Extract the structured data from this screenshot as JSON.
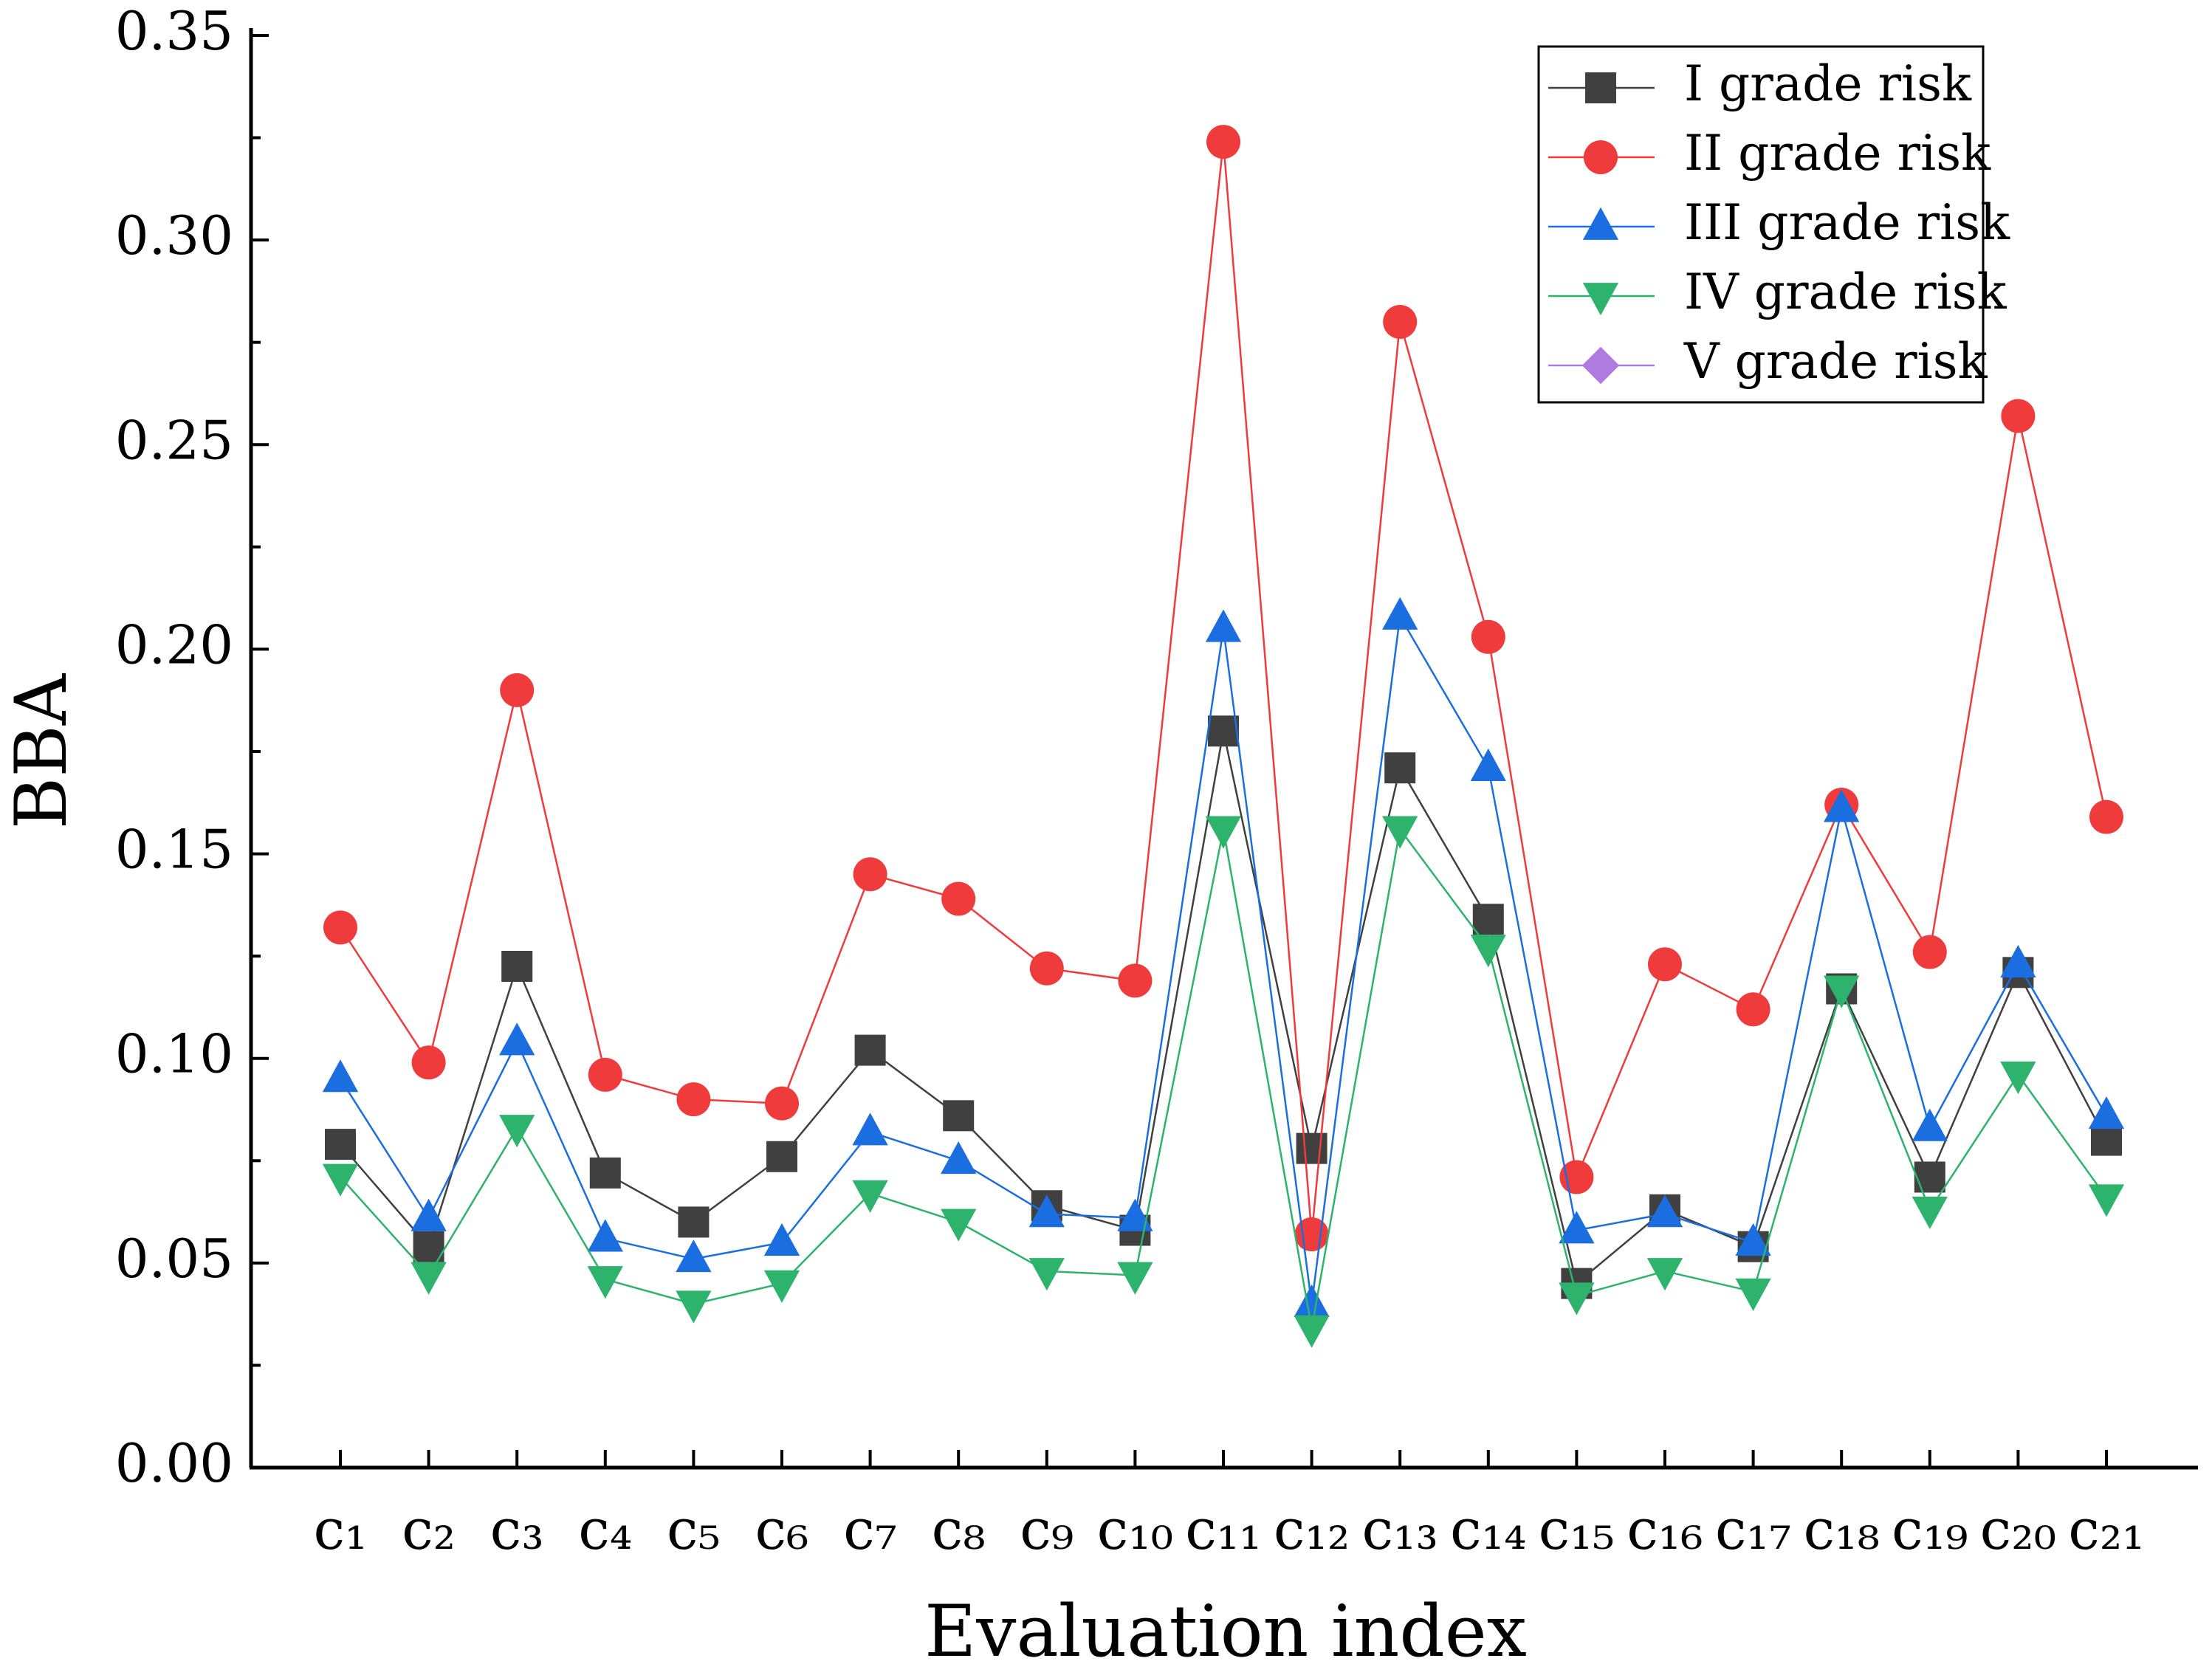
{
  "chart_data": {
    "type": "line",
    "xlabel": "Evaluation index",
    "ylabel": "BBA",
    "categories": [
      "c₁",
      "c₂",
      "c₃",
      "c₄",
      "c₅",
      "c₆",
      "c₇",
      "c₈",
      "c₉",
      "c₁₀",
      "c₁₁",
      "c₁₂",
      "c₁₃",
      "c₁₄",
      "c₁₅",
      "c₁₆",
      "c₁₇",
      "c₁₈",
      "c₁₉",
      "c₂₀",
      "c₂₁"
    ],
    "series": [
      {
        "name": "I grade risk",
        "color": "#404040",
        "marker": "square",
        "values": [
          0.079,
          0.054,
          0.1225,
          0.072,
          0.06,
          0.076,
          0.102,
          0.086,
          0.064,
          0.058,
          0.18,
          0.078,
          0.171,
          0.134,
          0.045,
          0.063,
          0.054,
          0.117,
          0.071,
          0.121,
          0.08
        ]
      },
      {
        "name": "II grade risk",
        "color": "#ef3b3b",
        "marker": "circle",
        "values": [
          0.132,
          0.099,
          0.19,
          0.096,
          0.09,
          0.089,
          0.145,
          0.139,
          0.122,
          0.119,
          0.324,
          0.057,
          0.28,
          0.203,
          0.071,
          0.123,
          0.112,
          0.162,
          0.126,
          0.257,
          0.159
        ]
      },
      {
        "name": "III grade risk",
        "color": "#1a6ee0",
        "marker": "triangle-up",
        "values": [
          0.095,
          0.061,
          0.104,
          0.056,
          0.051,
          0.055,
          0.082,
          0.075,
          0.062,
          0.061,
          0.205,
          0.04,
          0.208,
          0.171,
          0.058,
          0.062,
          0.055,
          0.161,
          0.083,
          0.123,
          0.086
        ]
      },
      {
        "name": "IV grade risk",
        "color": "#2db36b",
        "marker": "triangle-down",
        "values": [
          0.071,
          0.047,
          0.083,
          0.046,
          0.04,
          0.045,
          0.067,
          0.06,
          0.048,
          0.047,
          0.156,
          0.034,
          0.156,
          0.127,
          0.042,
          0.048,
          0.043,
          0.117,
          0.063,
          0.096,
          0.066
        ]
      },
      {
        "name": "V grade risk",
        "color": "#b07be0",
        "marker": "diamond",
        "values": [
          null,
          null,
          null,
          null,
          null,
          null,
          null,
          null,
          null,
          null,
          null,
          null,
          null,
          null,
          null,
          null,
          null,
          null,
          null,
          null,
          null
        ]
      }
    ],
    "ylim": [
      0,
      0.35
    ],
    "yticks": [
      {
        "value": 0,
        "label": "0.00"
      },
      {
        "value": 0.05,
        "label": "0.05"
      },
      {
        "value": 0.1,
        "label": "0.10"
      },
      {
        "value": 0.15,
        "label": "0.15"
      },
      {
        "value": 0.2,
        "label": "0.20"
      },
      {
        "value": 0.25,
        "label": "0.25"
      },
      {
        "value": 0.3,
        "label": "0.30"
      },
      {
        "value": 0.35,
        "label": "0.35"
      }
    ],
    "legend": "upper right"
  }
}
